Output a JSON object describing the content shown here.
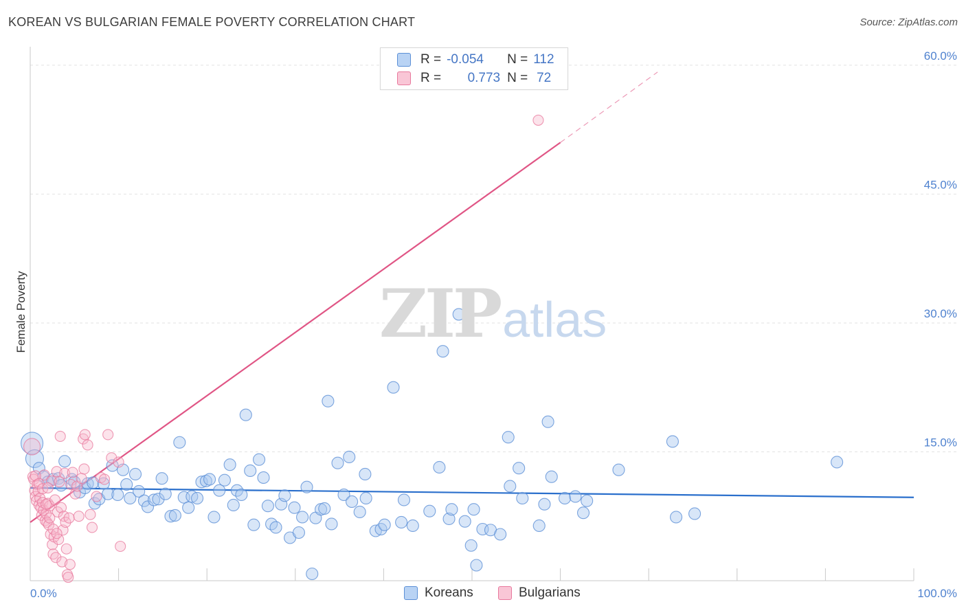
{
  "title": "KOREAN VS BULGARIAN FEMALE POVERTY CORRELATION CHART",
  "source": "Source: ZipAtlas.com",
  "watermark": {
    "zip": "ZIP",
    "atlas": "atlas"
  },
  "colors": {
    "korean_fill": "#a9c7f0",
    "korean_stroke": "#5b8fd6",
    "korean_line": "#2a6fcc",
    "bulgarian_fill": "#f7b8cc",
    "bulgarian_stroke": "#e8789c",
    "bulgarian_line": "#e05585",
    "accent_text": "#4576c5",
    "grid": "#e2e2e2"
  },
  "stats": {
    "korean": {
      "r_label": "R =",
      "r_value": "-0.054",
      "n_label": "N =",
      "n_value": "112"
    },
    "bulgarian": {
      "r_label": "R =",
      "r_value": "0.773",
      "n_label": "N =",
      "n_value": "72"
    }
  },
  "legend": {
    "korean": "Koreans",
    "bulgarian": "Bulgarians"
  },
  "chart_data": {
    "type": "scatter",
    "title": "KOREAN VS BULGARIAN FEMALE POVERTY CORRELATION CHART",
    "xlabel": "",
    "ylabel": "Female Poverty",
    "xlim": [
      0,
      100
    ],
    "ylim": [
      0,
      60
    ],
    "x_tick_labels": [
      {
        "value": 0,
        "label": "0.0%"
      },
      {
        "value": 100,
        "label": "100.0%"
      }
    ],
    "y_tick_labels": [
      {
        "value": 15,
        "label": "15.0%"
      },
      {
        "value": 30,
        "label": "30.0%"
      },
      {
        "value": 45,
        "label": "45.0%"
      },
      {
        "value": 60,
        "label": "60.0%"
      }
    ],
    "x_minor_ticks": [
      10,
      20,
      30,
      40,
      50,
      60,
      70,
      80,
      90,
      100
    ],
    "grid": true,
    "series": [
      {
        "name": "Koreans",
        "trend": {
          "x0": 0,
          "y0": 10.8,
          "x1": 100,
          "y1": 9.7
        },
        "points": [
          [
            0.2,
            16.0,
            1
          ],
          [
            0.5,
            14.2,
            2
          ],
          [
            1.0,
            13.1,
            3
          ],
          [
            1.5,
            12.1,
            3
          ],
          [
            2.0,
            11.5,
            3
          ],
          [
            2.6,
            11.8,
            3
          ],
          [
            3.2,
            11.9,
            3
          ],
          [
            3.5,
            11.1,
            3
          ],
          [
            3.9,
            13.9,
            3
          ],
          [
            4.7,
            11.8,
            3
          ],
          [
            5.0,
            11.5,
            3
          ],
          [
            5.6,
            10.3,
            3
          ],
          [
            6.2,
            10.8,
            3
          ],
          [
            6.5,
            11.3,
            3
          ],
          [
            7.1,
            11.4,
            3
          ],
          [
            7.3,
            9.0,
            3
          ],
          [
            7.8,
            9.5,
            3
          ],
          [
            8.3,
            11.3,
            3
          ],
          [
            8.8,
            10.1,
            3
          ],
          [
            9.3,
            13.4,
            3
          ],
          [
            9.9,
            10.0,
            3
          ],
          [
            10.5,
            12.9,
            3
          ],
          [
            10.9,
            11.2,
            3
          ],
          [
            11.3,
            9.6,
            3
          ],
          [
            11.9,
            12.4,
            3
          ],
          [
            12.3,
            10.4,
            3
          ],
          [
            12.9,
            9.3,
            3
          ],
          [
            13.3,
            8.6,
            3
          ],
          [
            14.0,
            9.4,
            3
          ],
          [
            14.5,
            9.5,
            3
          ],
          [
            14.9,
            11.9,
            3
          ],
          [
            15.3,
            10.1,
            3
          ],
          [
            15.9,
            7.5,
            3
          ],
          [
            16.4,
            7.6,
            3
          ],
          [
            16.9,
            16.1,
            3
          ],
          [
            17.4,
            9.7,
            3
          ],
          [
            17.9,
            8.5,
            3
          ],
          [
            18.3,
            9.8,
            3
          ],
          [
            18.9,
            9.6,
            3
          ],
          [
            19.4,
            11.5,
            3
          ],
          [
            19.9,
            11.6,
            3
          ],
          [
            20.3,
            11.8,
            3
          ],
          [
            20.8,
            7.4,
            3
          ],
          [
            21.4,
            10.5,
            3
          ],
          [
            22.0,
            11.7,
            3
          ],
          [
            22.6,
            13.5,
            3
          ],
          [
            23.0,
            8.8,
            3
          ],
          [
            23.4,
            10.5,
            3
          ],
          [
            23.9,
            10.0,
            3
          ],
          [
            24.4,
            19.3,
            3
          ],
          [
            24.9,
            12.8,
            3
          ],
          [
            25.3,
            6.5,
            3
          ],
          [
            25.9,
            14.1,
            3
          ],
          [
            26.4,
            12.0,
            3
          ],
          [
            26.9,
            8.7,
            3
          ],
          [
            27.3,
            6.6,
            3
          ],
          [
            27.8,
            6.2,
            3
          ],
          [
            28.4,
            8.9,
            3
          ],
          [
            28.8,
            9.9,
            3
          ],
          [
            29.4,
            5.0,
            3
          ],
          [
            29.9,
            8.5,
            3
          ],
          [
            30.4,
            5.6,
            3
          ],
          [
            30.8,
            7.4,
            3
          ],
          [
            31.3,
            10.9,
            3
          ],
          [
            31.9,
            0.8,
            3
          ],
          [
            32.3,
            7.3,
            3
          ],
          [
            32.9,
            8.3,
            3
          ],
          [
            33.3,
            8.4,
            3
          ],
          [
            33.7,
            20.9,
            3
          ],
          [
            34.1,
            6.6,
            3
          ],
          [
            34.8,
            13.7,
            3
          ],
          [
            35.5,
            10.0,
            3
          ],
          [
            36.1,
            14.4,
            3
          ],
          [
            36.4,
            9.2,
            3
          ],
          [
            37.3,
            8.0,
            3
          ],
          [
            37.9,
            12.4,
            3
          ],
          [
            38.0,
            9.6,
            3
          ],
          [
            39.1,
            5.8,
            3
          ],
          [
            39.7,
            6.0,
            3
          ],
          [
            40.1,
            6.5,
            3
          ],
          [
            41.1,
            22.5,
            3
          ],
          [
            42.0,
            6.8,
            3
          ],
          [
            42.3,
            9.4,
            3
          ],
          [
            43.3,
            6.4,
            3
          ],
          [
            45.2,
            8.1,
            3
          ],
          [
            46.3,
            13.2,
            3
          ],
          [
            46.7,
            26.7,
            3
          ],
          [
            47.4,
            7.2,
            3
          ],
          [
            47.7,
            8.3,
            3
          ],
          [
            48.5,
            31.0,
            3
          ],
          [
            49.2,
            6.9,
            3
          ],
          [
            49.9,
            4.1,
            3
          ],
          [
            50.2,
            8.3,
            3
          ],
          [
            50.5,
            1.8,
            3
          ],
          [
            51.2,
            6.0,
            3
          ],
          [
            52.1,
            5.9,
            3
          ],
          [
            53.2,
            5.4,
            3
          ],
          [
            54.1,
            16.7,
            3
          ],
          [
            54.3,
            11.0,
            3
          ],
          [
            55.3,
            13.1,
            3
          ],
          [
            55.7,
            9.6,
            3
          ],
          [
            57.6,
            6.4,
            3
          ],
          [
            58.2,
            8.9,
            3
          ],
          [
            58.6,
            18.5,
            3
          ],
          [
            59.0,
            12.1,
            3
          ],
          [
            60.5,
            9.6,
            3
          ],
          [
            61.7,
            9.8,
            3
          ],
          [
            62.6,
            7.9,
            3
          ],
          [
            63.0,
            9.3,
            3
          ],
          [
            66.6,
            12.9,
            3
          ],
          [
            72.7,
            16.2,
            3
          ],
          [
            73.1,
            7.4,
            3
          ],
          [
            75.2,
            7.8,
            3
          ],
          [
            91.3,
            13.8,
            3
          ]
        ]
      },
      {
        "name": "Bulgarians",
        "trend": {
          "x0": 0,
          "y0": 6.8,
          "x1": 60,
          "y1": 51.0,
          "dash_x1": 71,
          "dash_y1": 59.2
        },
        "points": [
          [
            0.2,
            15.6,
            2
          ],
          [
            0.3,
            12.1,
            2
          ],
          [
            0.4,
            11.8,
            2
          ],
          [
            0.5,
            10.5,
            2
          ],
          [
            0.6,
            9.8,
            2
          ],
          [
            0.7,
            9.3,
            2
          ],
          [
            0.8,
            11.2,
            2
          ],
          [
            0.9,
            10.4,
            2
          ],
          [
            1.0,
            8.8,
            2
          ],
          [
            1.1,
            9.6,
            2
          ],
          [
            1.2,
            8.5,
            2
          ],
          [
            1.3,
            7.6,
            2
          ],
          [
            1.4,
            9.1,
            2
          ],
          [
            1.5,
            8.2,
            2
          ],
          [
            1.6,
            12.3,
            2
          ],
          [
            1.7,
            7.0,
            2
          ],
          [
            1.8,
            7.8,
            2
          ],
          [
            1.9,
            6.8,
            2
          ],
          [
            2.0,
            9.0,
            2
          ],
          [
            2.1,
            6.5,
            2
          ],
          [
            2.2,
            8.7,
            2
          ],
          [
            2.3,
            5.4,
            2
          ],
          [
            2.4,
            11.6,
            2
          ],
          [
            2.5,
            4.2,
            2
          ],
          [
            2.6,
            3.1,
            2
          ],
          [
            2.7,
            5.1,
            2
          ],
          [
            2.8,
            9.4,
            2
          ],
          [
            2.9,
            2.7,
            2
          ],
          [
            3.0,
            12.7,
            2
          ],
          [
            3.1,
            8.0,
            2
          ],
          [
            3.2,
            4.8,
            2
          ],
          [
            3.3,
            11.5,
            2
          ],
          [
            3.4,
            16.8,
            2
          ],
          [
            3.5,
            8.5,
            2
          ],
          [
            3.6,
            2.2,
            2
          ],
          [
            3.7,
            5.9,
            2
          ],
          [
            3.8,
            7.5,
            2
          ],
          [
            3.9,
            12.5,
            2
          ],
          [
            4.0,
            6.8,
            2
          ],
          [
            4.1,
            3.7,
            2
          ],
          [
            4.2,
            0.7,
            2
          ],
          [
            4.3,
            0.4,
            2
          ],
          [
            4.4,
            7.3,
            2
          ],
          [
            4.5,
            1.9,
            2
          ],
          [
            4.6,
            11.2,
            2
          ],
          [
            4.8,
            12.6,
            2
          ],
          [
            5.1,
            10.1,
            2
          ],
          [
            5.3,
            11.0,
            2
          ],
          [
            5.5,
            7.5,
            2
          ],
          [
            5.8,
            11.9,
            2
          ],
          [
            6.0,
            16.5,
            2
          ],
          [
            6.1,
            13.0,
            2
          ],
          [
            6.2,
            17.0,
            2
          ],
          [
            6.5,
            15.8,
            2
          ],
          [
            6.8,
            7.7,
            2
          ],
          [
            7.0,
            6.2,
            2
          ],
          [
            7.5,
            9.8,
            2
          ],
          [
            8.0,
            12.0,
            2
          ],
          [
            8.4,
            11.8,
            2
          ],
          [
            8.8,
            17.0,
            2
          ],
          [
            9.2,
            14.3,
            2
          ],
          [
            10.0,
            13.8,
            2
          ],
          [
            0.6,
            12.2,
            2
          ],
          [
            1.0,
            11.3,
            2
          ],
          [
            1.4,
            10.7,
            2
          ],
          [
            1.8,
            8.9,
            2
          ],
          [
            2.2,
            7.3,
            2
          ],
          [
            2.6,
            6.0,
            2
          ],
          [
            3.0,
            5.5,
            2
          ],
          [
            10.2,
            4.0,
            2
          ],
          [
            57.5,
            53.6,
            2
          ],
          [
            2.0,
            10.8,
            2
          ]
        ]
      }
    ]
  }
}
